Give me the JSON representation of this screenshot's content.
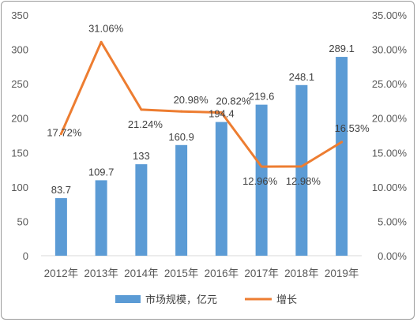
{
  "chart_data": {
    "type": "bar+line",
    "categories": [
      "2012年",
      "2013年",
      "2014年",
      "2015年",
      "2016年",
      "2017年",
      "2018年",
      "2019年"
    ],
    "series": [
      {
        "name": "市场规模，亿元",
        "type": "bar",
        "axis": "left",
        "color": "#5b9bd5",
        "values": [
          83.7,
          109.7,
          133,
          160.9,
          194.4,
          219.6,
          248.1,
          289.1
        ],
        "labels": [
          "83.7",
          "109.7",
          "133",
          "160.9",
          "194.4",
          "219.6",
          "248.1",
          "289.1"
        ]
      },
      {
        "name": "增长",
        "type": "line",
        "axis": "right",
        "color": "#ed7d31",
        "values": [
          17.72,
          31.06,
          21.24,
          20.98,
          20.82,
          12.96,
          12.98,
          16.53
        ],
        "labels": [
          "17.72%",
          "31.06%",
          "21.24%",
          "20.98%",
          "20.82%",
          "12.96%",
          "12.98%",
          "16.53%"
        ]
      }
    ],
    "y_left": {
      "min": 0,
      "max": 350,
      "step": 50,
      "ticks": [
        "0",
        "50",
        "100",
        "150",
        "200",
        "250",
        "300",
        "350"
      ]
    },
    "y_right": {
      "min": 0,
      "max": 35,
      "step": 5,
      "ticks": [
        "0.00%",
        "5.00%",
        "10.00%",
        "15.00%",
        "20.00%",
        "25.00%",
        "30.00%",
        "35.00%"
      ]
    },
    "grid": false,
    "legend_position": "bottom"
  }
}
